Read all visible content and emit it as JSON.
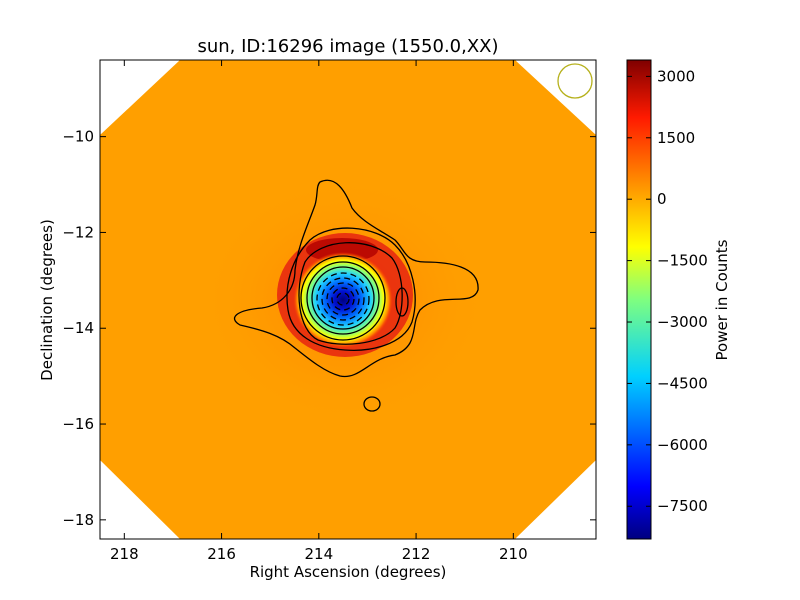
{
  "chart_data": {
    "type": "heatmap",
    "title": "sun, ID:16296 image (1550.0,XX)",
    "xlabel": "Right Ascension (degrees)",
    "ylabel": "Declination (degrees)",
    "xlim": [
      218.5,
      208.3
    ],
    "ylim": [
      -18.4,
      -8.4
    ],
    "x_ticks": [
      218,
      216,
      214,
      212,
      210
    ],
    "y_ticks": [
      -10,
      -12,
      -14,
      -16,
      -18
    ],
    "background_level": 500,
    "source_peak": {
      "ra": 213.4,
      "dec": -13.4,
      "min_value": -8300
    },
    "colorbar": {
      "label": "Power in Counts",
      "range": [
        -8300,
        3400
      ],
      "ticks": [
        3000,
        1500,
        0,
        -1500,
        -3000,
        -4500,
        -6000,
        -7500
      ],
      "colormap": "jet"
    },
    "beam_marker_color": "#b5b01a",
    "grid": false
  }
}
